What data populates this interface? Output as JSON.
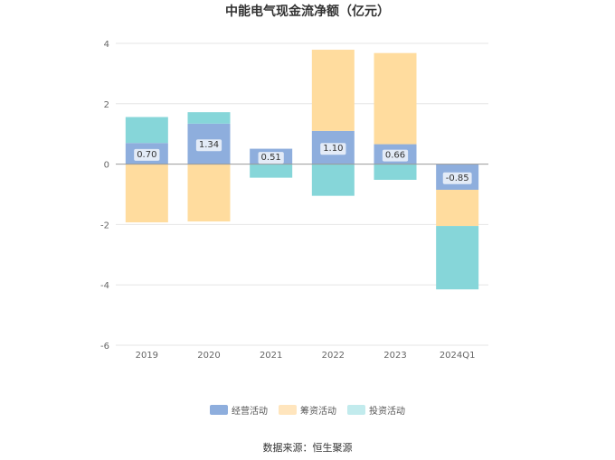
{
  "chart_data": {
    "type": "bar",
    "stacked": true,
    "title": "中能电气现金流净额（亿元）",
    "categories": [
      "2019",
      "2020",
      "2021",
      "2022",
      "2023",
      "2024Q1"
    ],
    "series": [
      {
        "name": "经营活动",
        "color": "#8eaedd",
        "values": [
          0.7,
          1.34,
          0.51,
          1.1,
          0.66,
          -0.85
        ],
        "labels": [
          "0.70",
          "1.34",
          "0.51",
          "1.10",
          "0.66",
          "-0.85"
        ]
      },
      {
        "name": "筹资活动",
        "color": "#ffdc9e",
        "values": [
          -1.93,
          -1.9,
          0.0,
          2.69,
          3.02,
          -1.2
        ]
      },
      {
        "name": "投资活动",
        "color": "#86d6d9",
        "values": [
          0.86,
          0.38,
          -0.45,
          -1.05,
          -0.52,
          -2.1
        ]
      }
    ],
    "ylim": [
      -6,
      4
    ],
    "yticks": [
      -6,
      -4,
      -2,
      0,
      2,
      4
    ],
    "grid": true,
    "legend_position": "bottom"
  },
  "legend_colors": {
    "经营活动": "#8eaedd",
    "筹资活动": "#ffe5bd",
    "投资活动": "#c2ebed"
  },
  "source": "数据来源：恒生聚源"
}
